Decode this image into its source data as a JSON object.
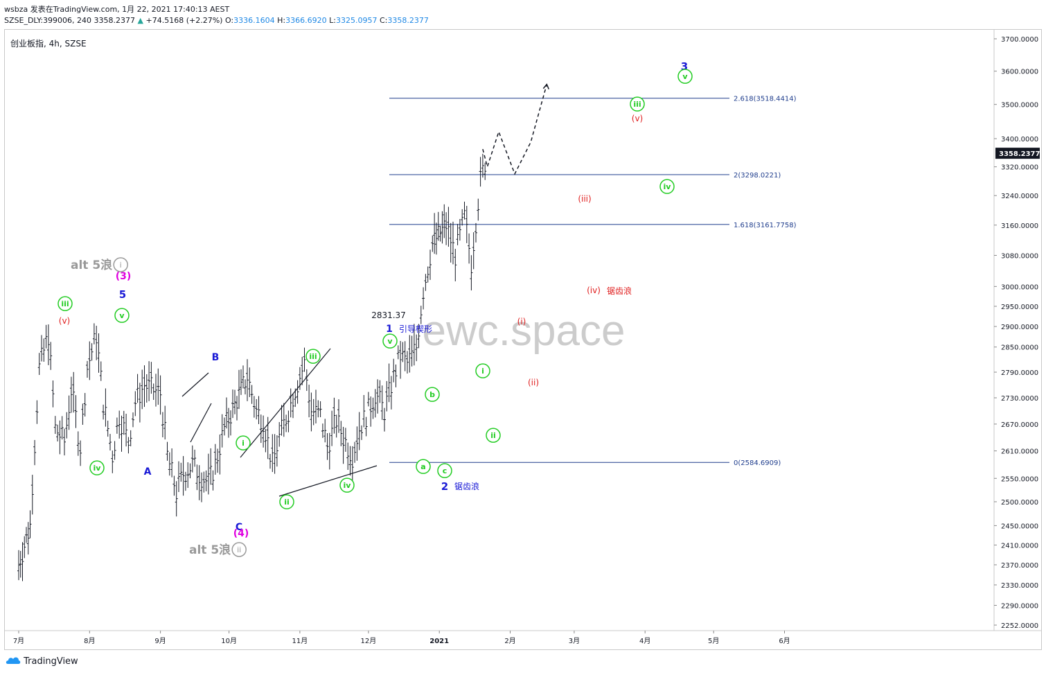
{
  "header": {
    "line1": "wsbza 发表在TradingView.com, 1月 22, 2021 17:40:13 AEST",
    "symbol": "SZSE_DLY:399006, 240",
    "last": "3358.2377",
    "change_arrow": "▲",
    "change": "+74.5168 (+2.27%)",
    "o_label": "O:",
    "o_value": "3336.1604",
    "h_label": "H:",
    "h_value": "3366.6920",
    "l_label": "L:",
    "l_value": "3325.0957",
    "c_label": "C:",
    "c_value": "3358.2377"
  },
  "chart_title": "创业板指, 4h, SZSE",
  "watermark": "ewc.space",
  "footer": {
    "brand": "TradingView"
  },
  "chart_data": {
    "type": "line",
    "title": "创业板指, 4h, SZSE",
    "xlabel": "",
    "ylabel": "",
    "ylim": [
      2230,
      3730
    ],
    "y_axis": {
      "scale": "log",
      "position": "right",
      "ticks": [
        "3700.0000",
        "3600.0000",
        "3500.0000",
        "3400.0000",
        "3320.0000",
        "3240.0000",
        "3160.0000",
        "3080.0000",
        "3000.0000",
        "2950.0000",
        "2900.0000",
        "2850.0000",
        "2790.0000",
        "2730.0000",
        "2670.0000",
        "2610.0000",
        "2550.0000",
        "2500.0000",
        "2450.0000",
        "2410.0000",
        "2370.0000",
        "2330.0000",
        "2290.0000",
        "2252.0000"
      ]
    },
    "x_axis": {
      "ticks": [
        "7月",
        "8月",
        "9月",
        "10月",
        "11月",
        "12月",
        "2021",
        "2月",
        "3月",
        "4月",
        "5月",
        "6月"
      ]
    },
    "last_price_label": "3358.2377",
    "series": [
      {
        "style": "ohlc-bars",
        "x": [
          "7/1",
          "7/6",
          "7/10",
          "7/14",
          "7/17",
          "7/21",
          "7/24",
          "7/28",
          "7/31",
          "8/4",
          "8/7",
          "8/11",
          "8/14",
          "8/18",
          "8/21",
          "8/25",
          "8/28",
          "9/1",
          "9/4",
          "9/8",
          "9/11",
          "9/15",
          "9/18",
          "9/22",
          "9/25",
          "9/29",
          "10/9",
          "10/13",
          "10/16",
          "10/20",
          "10/23",
          "10/27",
          "10/30",
          "11/3",
          "11/6",
          "11/10",
          "11/13",
          "11/17",
          "11/20",
          "11/24",
          "11/27",
          "12/1",
          "12/4",
          "12/8",
          "12/11",
          "12/15",
          "12/18",
          "12/22",
          "12/25",
          "12/29",
          "1/4",
          "1/8",
          "1/12",
          "1/15",
          "1/19",
          "1/22"
        ],
        "values": [
          2370,
          2450,
          2800,
          2880,
          2660,
          2630,
          2750,
          2620,
          2800,
          2880,
          2720,
          2600,
          2690,
          2630,
          2720,
          2760,
          2750,
          2740,
          2600,
          2520,
          2560,
          2580,
          2560,
          2540,
          2580,
          2660,
          2780,
          2700,
          2680,
          2580,
          2640,
          2700,
          2750,
          2810,
          2700,
          2690,
          2620,
          2680,
          2640,
          2600,
          2660,
          2700,
          2740,
          2700,
          2760,
          2830,
          2810,
          2850,
          2990,
          3110,
          3160,
          3080,
          3180,
          3060,
          3280,
          3358
        ]
      },
      {
        "style": "projection-dashed",
        "x": [
          "1/20",
          "1/22",
          "1/27",
          "2/3",
          "2/10",
          "2/17"
        ],
        "values": [
          3370,
          3320,
          3420,
          3300,
          3390,
          3560
        ]
      }
    ],
    "fibonacci": [
      {
        "label": "2.618(3518.4414)",
        "value": 3518.4414
      },
      {
        "label": "2(3298.0221)",
        "value": 3298.0221
      },
      {
        "label": "1.618(3161.7758)",
        "value": 3161.7758
      },
      {
        "label": "0(2584.6909)",
        "value": 2584.6909
      }
    ],
    "annotations": [
      {
        "text": "alt 5浪",
        "color": "#999999",
        "circled": "i",
        "circle_color": "#999999"
      },
      {
        "text": "(3)",
        "color": "#e000e0"
      },
      {
        "text": "5",
        "color": "#1a1ad6"
      },
      {
        "text": "(v)",
        "color": "#e02020"
      },
      {
        "text": "iii",
        "color": "#22cc22",
        "circled": true
      },
      {
        "text": "v",
        "color": "#22cc22",
        "circled": true
      },
      {
        "text": "iv",
        "color": "#22cc22",
        "circled": true
      },
      {
        "text": "A",
        "color": "#1a1ad6"
      },
      {
        "text": "B",
        "color": "#1a1ad6"
      },
      {
        "text": "C",
        "color": "#1a1ad6"
      },
      {
        "text": "(4)",
        "color": "#e000e0"
      },
      {
        "text": "alt 5浪",
        "color": "#999999",
        "circled": "ii",
        "circle_color": "#999999"
      },
      {
        "text": "i",
        "color": "#22cc22",
        "circled": true
      },
      {
        "text": "ii",
        "color": "#22cc22",
        "circled": true
      },
      {
        "text": "iii",
        "color": "#22cc22",
        "circled": true
      },
      {
        "text": "iv",
        "color": "#22cc22",
        "circled": true
      },
      {
        "text": "2831.37",
        "color": "#131722"
      },
      {
        "text": "1",
        "color": "#1a1ad6"
      },
      {
        "text": "引导楔形",
        "color": "#1a1ad6"
      },
      {
        "text": "v",
        "color": "#22cc22",
        "circled": true
      },
      {
        "text": "a",
        "color": "#22cc22",
        "circled": true
      },
      {
        "text": "b",
        "color": "#22cc22",
        "circled": true
      },
      {
        "text": "c",
        "color": "#22cc22",
        "circled": true
      },
      {
        "text": "2",
        "color": "#1a1ad6"
      },
      {
        "text": "锯齿浪",
        "color": "#1a1ad6"
      },
      {
        "text": "i",
        "color": "#22cc22",
        "circled": true
      },
      {
        "text": "ii",
        "color": "#22cc22",
        "circled": true
      },
      {
        "text": "(i)",
        "color": "#e02020"
      },
      {
        "text": "(ii)",
        "color": "#e02020"
      },
      {
        "text": "(iii)",
        "color": "#e02020"
      },
      {
        "text": "(iv)",
        "color": "#e02020"
      },
      {
        "text": "锯齿浪",
        "color": "#e02020"
      },
      {
        "text": "(v)",
        "color": "#e02020"
      },
      {
        "text": "iii",
        "color": "#22cc22",
        "circled": true
      },
      {
        "text": "iv",
        "color": "#22cc22",
        "circled": true
      },
      {
        "text": "3",
        "color": "#1a1ad6"
      },
      {
        "text": "v",
        "color": "#22cc22",
        "circled": true
      }
    ],
    "colors": {
      "bars": "#131722",
      "fib_lines": "#1e3c8c",
      "fib_text": "#1e3c8c",
      "watermark": "#cccccc",
      "price_tag_bg": "#131722"
    }
  }
}
